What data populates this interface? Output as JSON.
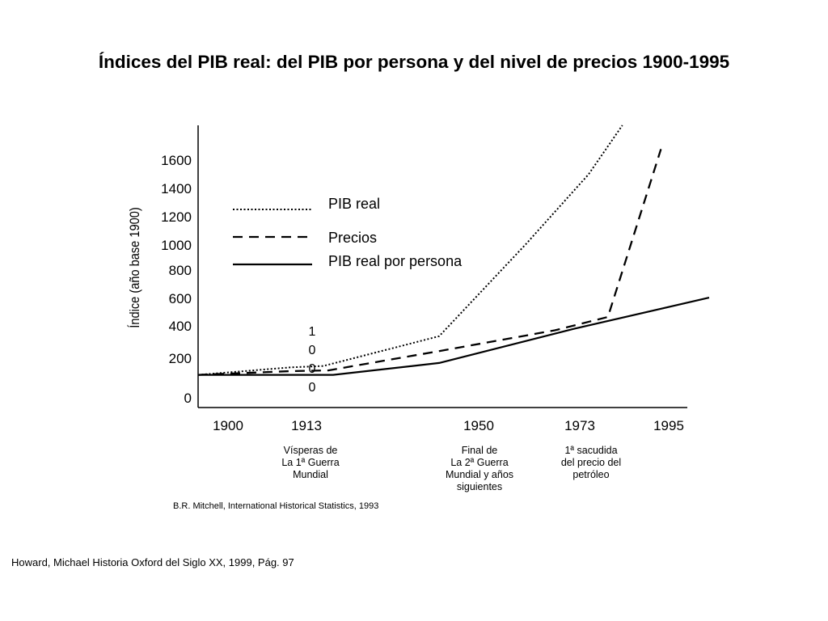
{
  "title": "Índices del PIB real: del PIB por persona y del nivel de precios 1900-1995",
  "footer": "Howard, Michael Historia Oxford del Siglo XX, 1999, Pág. 97",
  "chart_data": {
    "type": "line",
    "title": "Índices del PIB real: del PIB por persona y del nivel de precios 1900-1995",
    "xlabel": "",
    "ylabel": "Índice (año base 1900)",
    "x_ticks": [
      "1900",
      "1913",
      "1950",
      "1973",
      "1995"
    ],
    "y_ticks": [
      {
        "label": "0",
        "value": 0
      },
      {
        "label": "200",
        "value": 200
      },
      {
        "label": "400",
        "value": 400
      },
      {
        "label": "600",
        "value": 600
      },
      {
        "label": "800",
        "value": 800
      },
      {
        "label": "1000",
        "value": 1000
      },
      {
        "label": "1200",
        "value": 1200
      },
      {
        "label": "1400",
        "value": 1400
      },
      {
        "label": "1600",
        "value": 1600
      }
    ],
    "xlim": [
      1894,
      2000
    ],
    "ylim": [
      -120,
      1780
    ],
    "grid": false,
    "legend": "upper-left",
    "series": [
      {
        "name": "PIB real",
        "style": "dotted",
        "x": [
          1894,
          1913,
          1920,
          1944,
          1962,
          1975,
          1982
        ],
        "y": [
          100,
          150,
          160,
          360,
          980,
          1450,
          1780
        ]
      },
      {
        "name": "Precios",
        "style": "dashed",
        "x": [
          1894,
          1913,
          1921,
          1944,
          1968,
          1979,
          1990
        ],
        "y": [
          100,
          125,
          130,
          260,
          400,
          490,
          1620
        ]
      },
      {
        "name": "PIB real por persona",
        "style": "solid",
        "x": [
          1894,
          1911,
          1922,
          1944,
          1972,
          2000
        ],
        "y": [
          100,
          100,
          100,
          180,
          410,
          620
        ]
      }
    ],
    "annotations": [
      {
        "text": "1\n0\n0\n0",
        "x": 1918,
        "y": 150
      },
      {
        "text": "Vísperas de\nLa 1ª Guerra\nMundial",
        "x": 1913
      },
      {
        "text": "Final de\nLa 2ª Guerra\nMundial y años\nsiguientes",
        "x": 1950
      },
      {
        "text": "1ª sacudida\ndel precio del\npetróleo",
        "x": 1973
      }
    ],
    "source": "B.R. Mitchell, International  Historical Statistics, 1993"
  }
}
